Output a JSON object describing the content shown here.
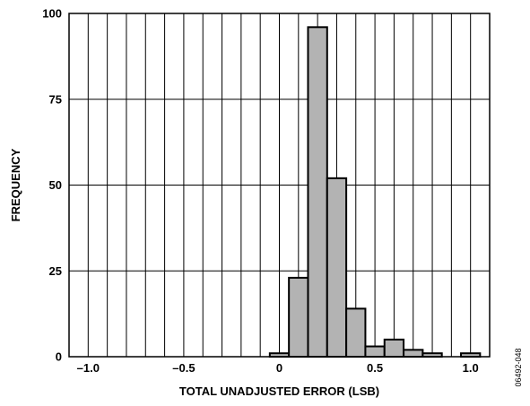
{
  "chart_data": {
    "type": "bar",
    "title": "",
    "xlabel": "TOTAL UNADJUSTED ERROR (LSB)",
    "ylabel": "FREQUENCY",
    "xlim": [
      -1.1,
      1.1
    ],
    "ylim": [
      0,
      100
    ],
    "xticks": [
      -1.0,
      -0.5,
      0,
      0.5,
      1.0
    ],
    "xtick_labels": [
      "–1.0",
      "–0.5",
      "0",
      "0.5",
      "1.0"
    ],
    "yticks": [
      0,
      25,
      50,
      75,
      100
    ],
    "ytick_labels": [
      "0",
      "25",
      "50",
      "75",
      "100"
    ],
    "bin_width": 0.1,
    "x_grid_step": 0.1,
    "grid": true,
    "bar_color": "#b3b3b3",
    "bars": [
      {
        "x": 0.0,
        "value": 1
      },
      {
        "x": 0.1,
        "value": 23
      },
      {
        "x": 0.2,
        "value": 96
      },
      {
        "x": 0.3,
        "value": 52
      },
      {
        "x": 0.4,
        "value": 14
      },
      {
        "x": 0.5,
        "value": 3
      },
      {
        "x": 0.6,
        "value": 5
      },
      {
        "x": 0.7,
        "value": 2
      },
      {
        "x": 0.8,
        "value": 1
      },
      {
        "x": 1.0,
        "value": 1
      }
    ]
  },
  "figure_code": "06492-048"
}
